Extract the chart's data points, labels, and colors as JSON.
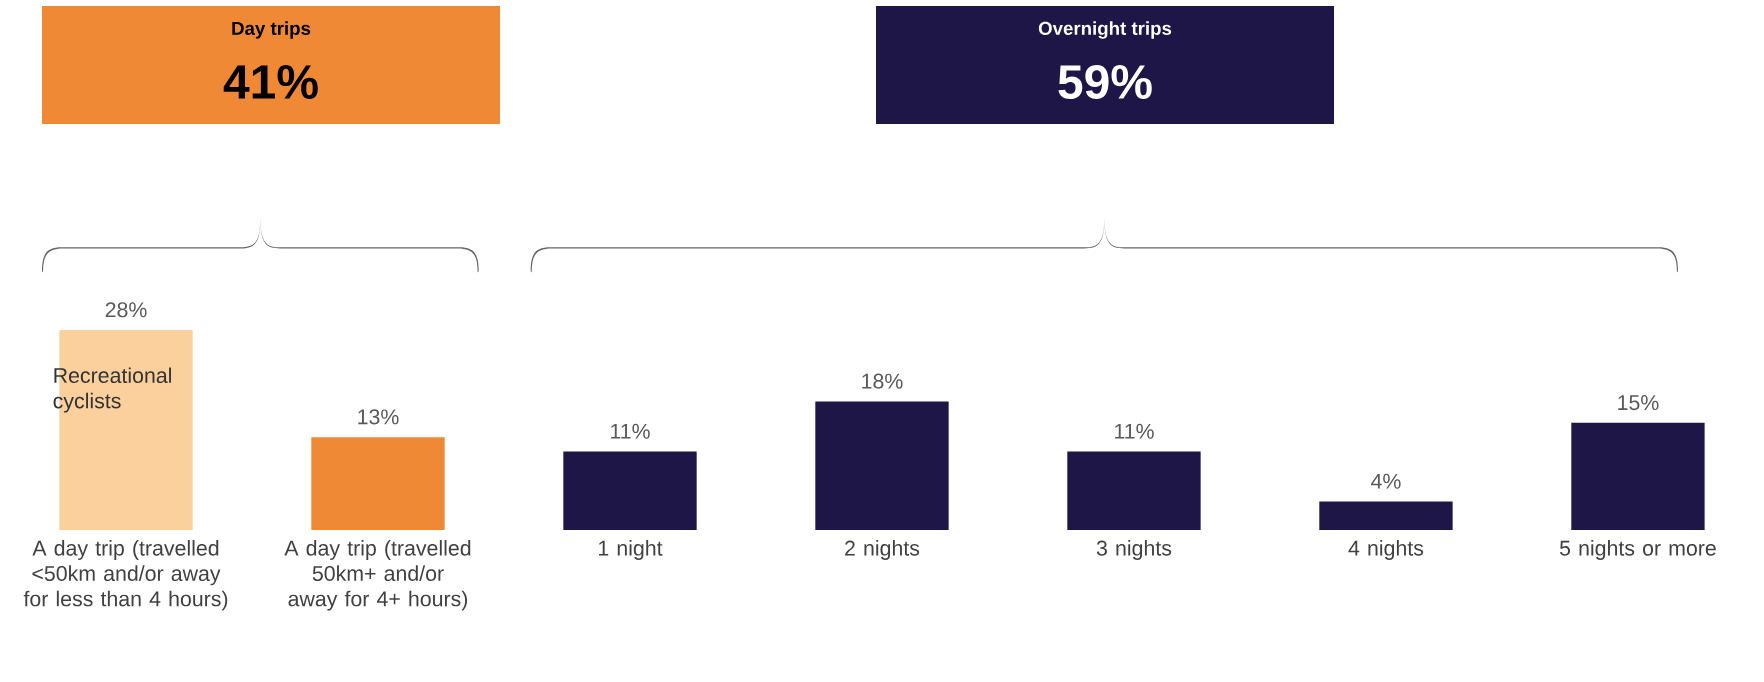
{
  "chart_data": {
    "type": "bar",
    "categories": [
      "A day trip (travelled <50km and/or away for less than 4 hours)",
      "A day trip (travelled 50km+ and/or away for 4+ hours)",
      "1 night",
      "2 nights",
      "3 nights",
      "4 nights",
      "5 nights or more"
    ],
    "values": [
      28,
      13,
      11,
      18,
      11,
      4,
      15
    ],
    "colors": [
      "#fbd09d",
      "#ef8935",
      "#1e1646",
      "#1e1646",
      "#1e1646",
      "#1e1646",
      "#1e1646"
    ],
    "value_labels": [
      "28%",
      "13%",
      "11%",
      "18%",
      "11%",
      "4%",
      "15%"
    ],
    "ylim": [
      0,
      28
    ],
    "annotations": [
      "Day trips",
      "41%",
      "Overnight trips",
      "59%",
      "Recreational cyclists"
    ]
  }
}
